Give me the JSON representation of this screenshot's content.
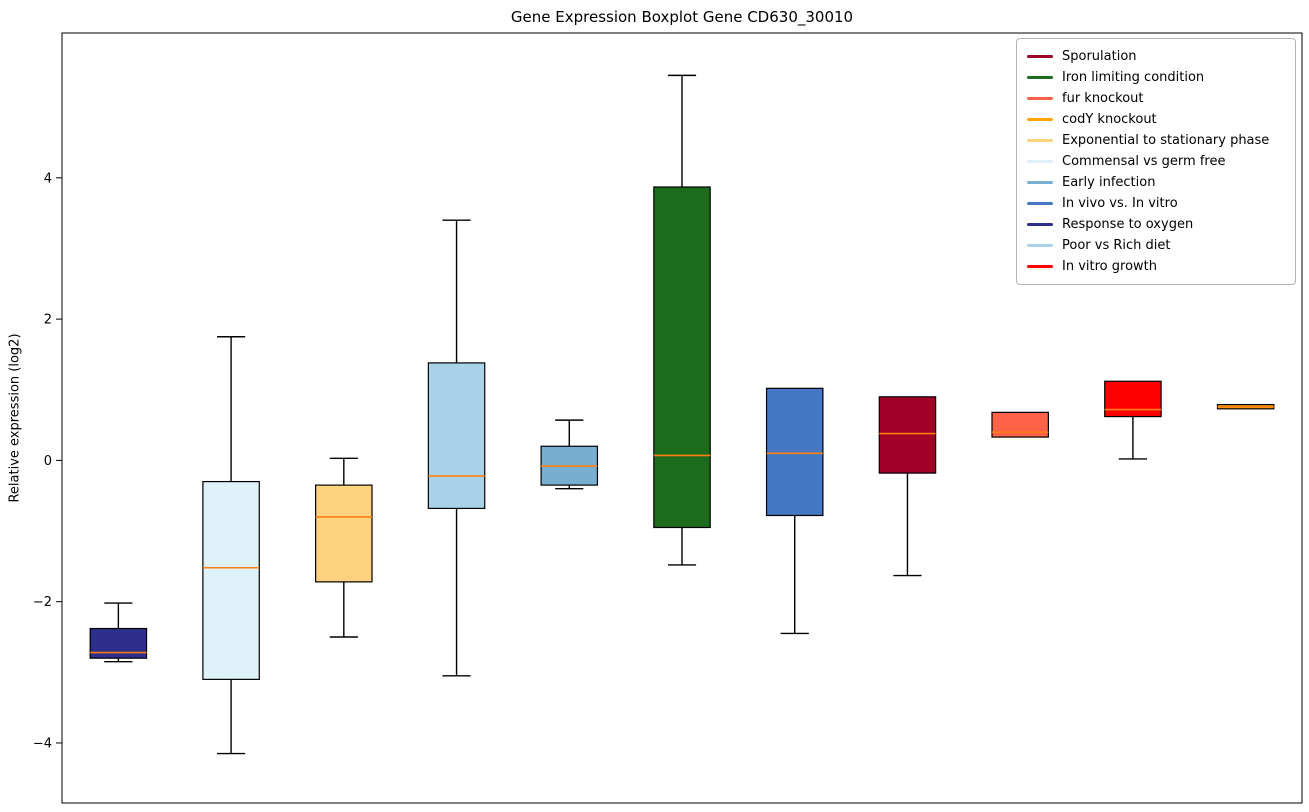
{
  "figure": {
    "title": "Gene Expression Boxplot Gene CD630_30010",
    "ylabel": "Relative expression (log2)"
  },
  "chart_data": {
    "type": "boxplot",
    "title": "Gene Expression Boxplot Gene CD630_30010",
    "xlabel": "",
    "ylabel": "Relative expression (log2)",
    "ylim": [
      -4.85,
      6.05
    ],
    "yticks": [
      -4,
      -2,
      0,
      2,
      4
    ],
    "grid": false,
    "legend_position": "upper right",
    "median_color": "#ff7f0e",
    "box_edge_color": "#000000",
    "whisker_color": "#000000",
    "legend": [
      {
        "label": "Sporulation",
        "color": "#a00026"
      },
      {
        "label": "Iron limiting condition",
        "color": "#1d6b1d"
      },
      {
        "label": "fur knockout",
        "color": "#ff6347"
      },
      {
        "label": "codY knockout",
        "color": "#ffa500"
      },
      {
        "label": "Exponential to stationary phase",
        "color": "#ffd27f"
      },
      {
        "label": "Commensal vs germ free",
        "color": "#dff1f9"
      },
      {
        "label": "Early infection",
        "color": "#77aed2"
      },
      {
        "label": "In vivo vs. In vitro",
        "color": "#4577c4"
      },
      {
        "label": "Response to oxygen",
        "color": "#2e2e8c"
      },
      {
        "label": "Poor vs Rich diet",
        "color": "#a8d2e8"
      },
      {
        "label": "In vitro growth",
        "color": "#ff0000"
      }
    ],
    "boxes": [
      {
        "condition": "Response to oxygen",
        "color": "#2e2e8c",
        "whisker_low": -2.85,
        "q1": -2.8,
        "median": -2.72,
        "q3": -2.38,
        "whisker_high": -2.02
      },
      {
        "condition": "Commensal vs germ free",
        "color": "#dff1f9",
        "whisker_low": -4.15,
        "q1": -3.1,
        "median": -1.52,
        "q3": -0.3,
        "whisker_high": 1.75
      },
      {
        "condition": "Exponential to stationary phase",
        "color": "#ffd27f",
        "whisker_low": -2.5,
        "q1": -1.72,
        "median": -0.8,
        "q3": -0.35,
        "whisker_high": 0.03
      },
      {
        "condition": "Poor vs Rich diet",
        "color": "#a8d2e8",
        "whisker_low": -3.05,
        "q1": -0.68,
        "median": -0.22,
        "q3": 1.38,
        "whisker_high": 3.4
      },
      {
        "condition": "Early infection",
        "color": "#77aed2",
        "whisker_low": -0.4,
        "q1": -0.35,
        "median": -0.08,
        "q3": 0.2,
        "whisker_high": 0.57
      },
      {
        "condition": "Iron limiting condition",
        "color": "#1d6b1d",
        "whisker_low": -1.48,
        "q1": -0.95,
        "median": 0.07,
        "q3": 3.87,
        "whisker_high": 5.45
      },
      {
        "condition": "In vivo vs. In vitro",
        "color": "#4577c4",
        "whisker_low": -2.45,
        "q1": -0.78,
        "median": 0.1,
        "q3": 1.02,
        "whisker_high": 1.02
      },
      {
        "condition": "Sporulation",
        "color": "#a00026",
        "whisker_low": -1.63,
        "q1": -0.18,
        "median": 0.38,
        "q3": 0.9,
        "whisker_high": 0.9
      },
      {
        "condition": "fur knockout",
        "color": "#ff6347",
        "whisker_low": 0.33,
        "q1": 0.33,
        "median": 0.4,
        "q3": 0.68,
        "whisker_high": 0.68
      },
      {
        "condition": "In vitro growth",
        "color": "#ff0000",
        "whisker_low": 0.02,
        "q1": 0.62,
        "median": 0.72,
        "q3": 1.12,
        "whisker_high": 1.12
      },
      {
        "condition": "codY knockout",
        "color": "#ffa500",
        "whisker_low": 0.73,
        "q1": 0.73,
        "median": 0.76,
        "q3": 0.79,
        "whisker_high": 0.79
      }
    ]
  }
}
